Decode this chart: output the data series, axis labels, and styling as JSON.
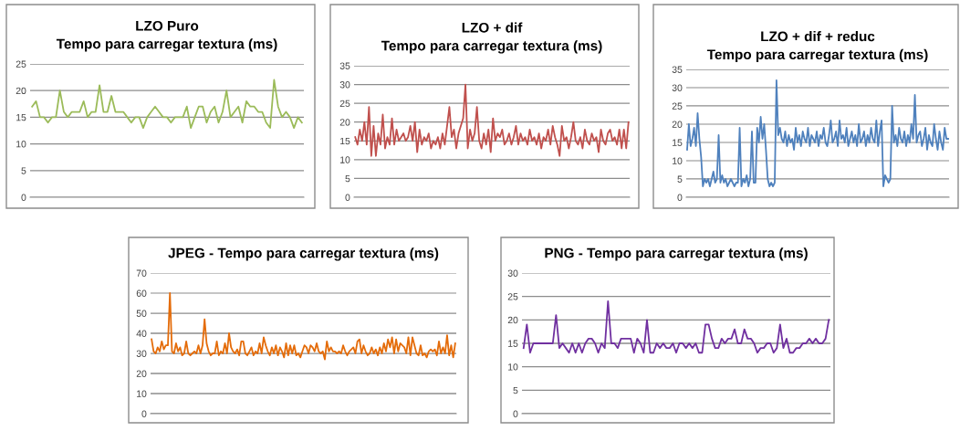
{
  "chart_data": [
    {
      "type": "line",
      "title": "LZO Puro\nTempo para carregar textura (ms)",
      "ylim": [
        0,
        25
      ],
      "yticks": [
        0,
        5,
        10,
        15,
        20,
        25
      ],
      "grid": "y",
      "tick_labels": "y",
      "categories": [
        null,
        null,
        null,
        null,
        null,
        null,
        null,
        null,
        null,
        null,
        null,
        null,
        null,
        null,
        null,
        null,
        null,
        null,
        null,
        null,
        null,
        null,
        null,
        null,
        null,
        null,
        null,
        null,
        null,
        null,
        null,
        null,
        null,
        null,
        null,
        null,
        null,
        null,
        null,
        null,
        null,
        null,
        null,
        null,
        null,
        null,
        null,
        null,
        null,
        null,
        null,
        null,
        null,
        null,
        null,
        null,
        null,
        null,
        null,
        null,
        null,
        null,
        null,
        null,
        null,
        null,
        null,
        null,
        null
      ],
      "series": [
        {
          "color": "#9bbb59",
          "values": [
            17,
            18,
            15,
            15,
            14,
            15,
            15,
            20,
            16,
            15,
            16,
            16,
            16,
            18,
            15,
            16,
            16,
            21,
            16,
            16,
            19,
            16,
            16,
            16,
            15,
            14,
            15,
            15,
            13,
            15,
            16,
            17,
            16,
            15,
            15,
            14,
            15,
            15,
            15,
            17,
            13,
            15,
            17,
            17,
            14,
            16,
            17,
            14,
            16,
            20,
            15,
            16,
            17,
            14,
            18,
            17,
            17,
            16,
            16,
            14,
            13,
            22,
            17,
            15,
            16,
            15,
            13,
            15,
            14
          ]
        }
      ]
    },
    {
      "type": "line",
      "title": "LZO + dif\nTempo para carregar textura (ms)",
      "ylim": [
        0,
        35
      ],
      "yticks": [
        0,
        5,
        10,
        15,
        20,
        25,
        30,
        35
      ],
      "grid": "y",
      "tick_labels": "y",
      "categories": [
        null,
        null,
        null,
        null,
        null,
        null,
        null,
        null,
        null,
        null,
        null,
        null,
        null,
        null,
        null,
        null,
        null,
        null,
        null,
        null,
        null,
        null,
        null,
        null,
        null,
        null,
        null,
        null,
        null,
        null,
        null,
        null,
        null,
        null,
        null,
        null,
        null,
        null,
        null,
        null,
        null,
        null,
        null,
        null,
        null,
        null,
        null,
        null,
        null,
        null,
        null,
        null,
        null,
        null,
        null,
        null,
        null,
        null,
        null,
        null,
        null,
        null,
        null,
        null,
        null,
        null,
        null,
        null,
        null,
        null,
        null,
        null,
        null,
        null,
        null,
        null,
        null,
        null,
        null,
        null,
        null,
        null,
        null,
        null,
        null,
        null,
        null,
        null,
        null,
        null,
        null,
        null,
        null,
        null,
        null,
        null,
        null,
        null,
        null,
        null,
        null,
        null,
        null,
        null,
        null,
        null,
        null,
        null,
        null,
        null,
        null,
        null,
        null,
        null,
        null,
        null,
        null,
        null,
        null,
        null
      ],
      "series": [
        {
          "color": "#c0504d",
          "values": [
            16,
            14,
            18,
            15,
            20,
            14,
            24,
            11,
            19,
            11,
            17,
            14,
            22,
            13,
            16,
            14,
            21,
            14,
            18,
            15,
            16,
            17,
            15,
            16,
            19,
            15,
            20,
            12,
            18,
            14,
            16,
            15,
            17,
            13,
            15,
            14,
            16,
            13,
            17,
            14,
            19,
            24,
            16,
            18,
            13,
            17,
            19,
            21,
            30,
            13,
            18,
            15,
            17,
            24,
            15,
            13,
            17,
            14,
            18,
            12,
            21,
            15,
            17,
            16,
            18,
            14,
            15,
            17,
            14,
            16,
            19,
            14,
            17,
            15,
            16,
            14,
            18,
            15,
            16,
            14,
            17,
            13,
            16,
            15,
            18,
            14,
            19,
            16,
            14,
            11,
            19,
            15,
            16,
            13,
            16,
            20,
            15,
            14,
            16,
            13,
            18,
            15,
            14,
            17,
            15,
            16,
            12,
            18,
            15,
            14,
            17,
            18,
            15,
            16,
            14,
            18,
            13,
            18,
            13,
            20
          ]
        }
      ]
    },
    {
      "type": "line",
      "title": "LZO + dif + reduc\nTempo para carregar textura (ms)",
      "ylim": [
        0,
        35
      ],
      "yticks": [
        0,
        5,
        10,
        15,
        20,
        25,
        30,
        35
      ],
      "grid": "y",
      "tick_labels": "y",
      "categories": [
        null,
        null,
        null,
        null,
        null,
        null,
        null,
        null,
        null,
        null,
        null,
        null,
        null,
        null,
        null,
        null,
        null,
        null,
        null,
        null,
        null,
        null,
        null,
        null,
        null,
        null,
        null,
        null,
        null,
        null,
        null,
        null,
        null,
        null,
        null,
        null,
        null,
        null,
        null,
        null,
        null,
        null,
        null,
        null,
        null,
        null,
        null,
        null,
        null,
        null,
        null,
        null,
        null,
        null,
        null,
        null,
        null,
        null,
        null,
        null,
        null,
        null,
        null,
        null,
        null,
        null,
        null,
        null,
        null,
        null,
        null,
        null,
        null,
        null,
        null,
        null,
        null,
        null,
        null,
        null,
        null,
        null,
        null,
        null,
        null,
        null,
        null,
        null,
        null,
        null,
        null,
        null,
        null,
        null,
        null,
        null,
        null,
        null,
        null,
        null,
        null,
        null,
        null,
        null,
        null,
        null,
        null,
        null,
        null,
        null,
        null,
        null,
        null,
        null,
        null,
        null,
        null,
        null,
        null,
        null,
        null,
        null,
        null,
        null,
        null,
        null,
        null,
        null,
        null,
        null,
        null,
        null,
        null,
        null,
        null,
        null,
        null,
        null,
        null,
        null,
        null,
        null,
        null,
        null,
        null,
        null,
        null,
        null,
        null,
        null
      ],
      "series": [
        {
          "color": "#4f81bd",
          "values": [
            13,
            20,
            14,
            16,
            19,
            14,
            23,
            16,
            11,
            3,
            5,
            4,
            5,
            3,
            5,
            7,
            4,
            5,
            17,
            4,
            6,
            4,
            5,
            3,
            4,
            5,
            4,
            3,
            4,
            4,
            19,
            3,
            5,
            4,
            6,
            3,
            5,
            18,
            4,
            4,
            19,
            15,
            22,
            16,
            20,
            13,
            5,
            3,
            4,
            3,
            4,
            32,
            17,
            19,
            16,
            15,
            18,
            14,
            17,
            15,
            16,
            13,
            19,
            15,
            17,
            14,
            18,
            16,
            15,
            19,
            14,
            17,
            16,
            15,
            18,
            14,
            17,
            16,
            19,
            15,
            14,
            17,
            21,
            15,
            16,
            18,
            14,
            21,
            16,
            17,
            15,
            19,
            14,
            16,
            18,
            15,
            17,
            14,
            20,
            15,
            16,
            18,
            14,
            17,
            15,
            19,
            16,
            15,
            21,
            14,
            18,
            21,
            3,
            6,
            5,
            4,
            5,
            25,
            15,
            17,
            14,
            19,
            16,
            15,
            18,
            14,
            17,
            15,
            20,
            16,
            28,
            15,
            17,
            18,
            14,
            16,
            19,
            13,
            17,
            15,
            14,
            20,
            16,
            13,
            18,
            15,
            13,
            19,
            16,
            16
          ]
        }
      ]
    },
    {
      "type": "line",
      "title": "JPEG - Tempo para carregar textura (ms)",
      "ylim": [
        0,
        70
      ],
      "yticks": [
        0,
        10,
        20,
        30,
        40,
        50,
        60,
        70
      ],
      "grid": "y",
      "tick_labels": "y",
      "categories": [
        null,
        null,
        null,
        null,
        null,
        null,
        null,
        null,
        null,
        null,
        null,
        null,
        null,
        null,
        null,
        null,
        null,
        null,
        null,
        null,
        null,
        null,
        null,
        null,
        null,
        null,
        null,
        null,
        null,
        null,
        null,
        null,
        null,
        null,
        null,
        null,
        null,
        null,
        null,
        null,
        null,
        null,
        null,
        null,
        null,
        null,
        null,
        null,
        null,
        null,
        null,
        null,
        null,
        null,
        null,
        null,
        null,
        null,
        null,
        null,
        null,
        null,
        null,
        null,
        null,
        null,
        null,
        null,
        null,
        null,
        null,
        null,
        null,
        null,
        null,
        null,
        null,
        null,
        null,
        null,
        null,
        null,
        null,
        null,
        null,
        null,
        null,
        null,
        null,
        null,
        null,
        null,
        null,
        null,
        null,
        null,
        null,
        null,
        null,
        null,
        null,
        null,
        null,
        null,
        null,
        null,
        null,
        null,
        null,
        null,
        null,
        null,
        null,
        null,
        null,
        null,
        null,
        null,
        null,
        null,
        null,
        null,
        null,
        null,
        null,
        null,
        null,
        null,
        null,
        null,
        null,
        null,
        null,
        null,
        null,
        null,
        null,
        null,
        null,
        null,
        null,
        null,
        null,
        null,
        null,
        null,
        null,
        null,
        null,
        null
      ],
      "series": [
        {
          "color": "#e46c0a",
          "values": [
            37,
            31,
            30,
            33,
            31,
            36,
            32,
            34,
            34,
            60,
            31,
            30,
            35,
            31,
            33,
            29,
            30,
            36,
            30,
            29,
            30,
            31,
            30,
            34,
            30,
            34,
            47,
            35,
            31,
            29,
            30,
            30,
            36,
            29,
            31,
            30,
            35,
            30,
            40,
            33,
            31,
            30,
            32,
            29,
            36,
            36,
            30,
            29,
            31,
            33,
            29,
            31,
            30,
            35,
            30,
            38,
            34,
            31,
            29,
            33,
            30,
            34,
            29,
            33,
            31,
            28,
            35,
            29,
            34,
            30,
            34,
            29,
            30,
            28,
            31,
            34,
            33,
            30,
            34,
            33,
            31,
            35,
            31,
            30,
            31,
            27,
            36,
            31,
            33,
            31,
            31,
            30,
            31,
            30,
            34,
            31,
            29,
            31,
            32,
            33,
            30,
            36,
            37,
            30,
            34,
            31,
            29,
            30,
            33,
            30,
            32,
            29,
            33,
            30,
            35,
            31,
            37,
            33,
            38,
            30,
            37,
            31,
            35,
            34,
            33,
            30,
            38,
            29,
            38,
            34,
            30,
            29,
            34,
            29,
            30,
            28,
            31,
            32,
            31,
            32,
            29,
            36,
            30,
            33,
            30,
            39,
            29,
            34,
            28,
            35
          ]
        }
      ]
    },
    {
      "type": "line",
      "title": "PNG - Tempo para carregar textura (ms)",
      "ylim": [
        0,
        30
      ],
      "yticks": [
        0,
        5,
        10,
        15,
        20,
        25,
        30
      ],
      "grid": "y",
      "tick_labels": "y",
      "categories": [
        null,
        null,
        null,
        null,
        null,
        null,
        null,
        null,
        null,
        null,
        null,
        null,
        null,
        null,
        null,
        null,
        null,
        null,
        null,
        null,
        null,
        null,
        null,
        null,
        null,
        null,
        null,
        null,
        null,
        null,
        null,
        null,
        null,
        null,
        null,
        null,
        null,
        null,
        null,
        null,
        null,
        null,
        null,
        null,
        null,
        null,
        null,
        null,
        null,
        null,
        null,
        null,
        null,
        null,
        null,
        null,
        null,
        null,
        null,
        null,
        null,
        null,
        null,
        null,
        null,
        null,
        null,
        null,
        null,
        null,
        null,
        null,
        null,
        null,
        null,
        null,
        null,
        null,
        null,
        null,
        null,
        null,
        null,
        null,
        null,
        null,
        null,
        null,
        null,
        null,
        null,
        null,
        null,
        null,
        null
      ],
      "series": [
        {
          "color": "#7030a0",
          "values": [
            14,
            19,
            13,
            15,
            15,
            15,
            15,
            15,
            15,
            15,
            21,
            14,
            15,
            14,
            13,
            15,
            13,
            15,
            13,
            15,
            16,
            16,
            15,
            13,
            15,
            14,
            24,
            15,
            15,
            14,
            16,
            16,
            16,
            16,
            13,
            16,
            15,
            13,
            20,
            13,
            13,
            15,
            14,
            15,
            14,
            14,
            15,
            13,
            15,
            15,
            14,
            15,
            14,
            15,
            13,
            13,
            19,
            19,
            16,
            14,
            14,
            16,
            15,
            16,
            16,
            18,
            15,
            15,
            18,
            16,
            16,
            15,
            13,
            14,
            14,
            15,
            15,
            13,
            14,
            19,
            14,
            16,
            13,
            13,
            14,
            14,
            15,
            15,
            16,
            15,
            16,
            15,
            15,
            16,
            20
          ]
        }
      ]
    }
  ]
}
